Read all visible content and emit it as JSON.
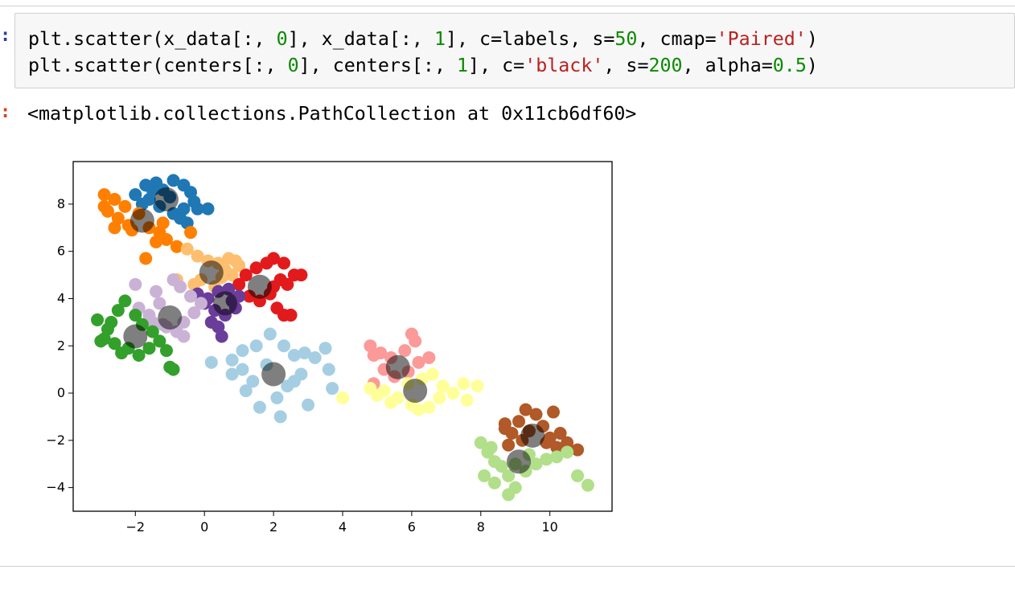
{
  "notebook": {
    "input_prompt": ":",
    "output_prompt": ":",
    "code_lines": [
      [
        {
          "t": "plt.scatter(x_data[:, ",
          "c": "plain"
        },
        {
          "t": "0",
          "c": "num"
        },
        {
          "t": "], x_data[:, ",
          "c": "plain"
        },
        {
          "t": "1",
          "c": "num"
        },
        {
          "t": "], c=labels, s=",
          "c": "plain"
        },
        {
          "t": "50",
          "c": "num"
        },
        {
          "t": ", cmap=",
          "c": "plain"
        },
        {
          "t": "'Paired'",
          "c": "str"
        },
        {
          "t": ")",
          "c": "plain"
        }
      ],
      [
        {
          "t": "plt.scatter(centers[:, ",
          "c": "plain"
        },
        {
          "t": "0",
          "c": "num"
        },
        {
          "t": "], centers[:, ",
          "c": "plain"
        },
        {
          "t": "1",
          "c": "num"
        },
        {
          "t": "], c=",
          "c": "plain"
        },
        {
          "t": "'black'",
          "c": "str"
        },
        {
          "t": ", s=",
          "c": "plain"
        },
        {
          "t": "200",
          "c": "num"
        },
        {
          "t": ", alpha=",
          "c": "plain"
        },
        {
          "t": "0.5",
          "c": "num"
        },
        {
          "t": ")",
          "c": "plain"
        }
      ]
    ],
    "output_text": "<matplotlib.collections.PathCollection at 0x11cb6df60>"
  },
  "chart_data": {
    "type": "scatter",
    "xlim": [
      -3.8,
      11.8
    ],
    "ylim": [
      -5.0,
      9.8
    ],
    "x_ticks": [
      -2,
      0,
      2,
      4,
      6,
      8,
      10
    ],
    "y_ticks": [
      -4,
      -2,
      0,
      2,
      4,
      6,
      8
    ],
    "x_tick_labels": [
      "−2",
      "0",
      "2",
      "4",
      "6",
      "8",
      "10"
    ],
    "y_tick_labels": [
      "−4",
      "−2",
      "0",
      "2",
      "4",
      "6",
      "8"
    ],
    "grid": false,
    "point_alpha": 1.0,
    "center_color": "#000000",
    "center_alpha": 0.5,
    "clusters": [
      {
        "color": "#1f78b4",
        "center": [
          -1.1,
          8.2
        ],
        "points": [
          [
            -2.0,
            8.4
          ],
          [
            -1.7,
            8.8
          ],
          [
            -1.4,
            8.9
          ],
          [
            -1.2,
            8.6
          ],
          [
            -0.9,
            9.0
          ],
          [
            -0.6,
            8.8
          ],
          [
            -0.4,
            8.5
          ],
          [
            -0.3,
            8.1
          ],
          [
            -0.6,
            7.8
          ],
          [
            -0.9,
            7.6
          ],
          [
            -1.3,
            7.9
          ],
          [
            -1.6,
            8.2
          ],
          [
            -0.2,
            7.8
          ],
          [
            0.1,
            7.8
          ],
          [
            -0.7,
            7.4
          ],
          [
            -1.0,
            8.3
          ],
          [
            -1.5,
            8.6
          ],
          [
            -0.5,
            7.2
          ],
          [
            -1.8,
            8.0
          ]
        ]
      },
      {
        "color": "#ff7f00",
        "center": [
          -1.8,
          7.3
        ],
        "points": [
          [
            -2.9,
            8.4
          ],
          [
            -2.6,
            8.2
          ],
          [
            -2.3,
            7.9
          ],
          [
            -2.8,
            7.7
          ],
          [
            -2.5,
            7.4
          ],
          [
            -2.2,
            7.1
          ],
          [
            -1.9,
            7.6
          ],
          [
            -1.6,
            7.0
          ],
          [
            -1.3,
            6.8
          ],
          [
            -1.1,
            6.5
          ],
          [
            -1.4,
            6.4
          ],
          [
            -1.7,
            5.7
          ],
          [
            -2.6,
            7.0
          ],
          [
            -2.1,
            6.9
          ],
          [
            -0.8,
            6.2
          ],
          [
            -0.4,
            6.8
          ],
          [
            -2.9,
            7.9
          ],
          [
            -1.2,
            7.2
          ]
        ]
      },
      {
        "color": "#fdbf6f",
        "center": [
          0.2,
          5.1
        ],
        "points": [
          [
            -0.5,
            6.1
          ],
          [
            -0.2,
            5.8
          ],
          [
            0.1,
            5.6
          ],
          [
            0.4,
            5.5
          ],
          [
            0.7,
            5.7
          ],
          [
            1.0,
            5.4
          ],
          [
            0.8,
            5.0
          ],
          [
            0.5,
            4.9
          ],
          [
            -0.1,
            4.8
          ],
          [
            -0.3,
            4.6
          ],
          [
            0.3,
            4.5
          ],
          [
            0.9,
            5.6
          ],
          [
            -0.8,
            4.8
          ],
          [
            0.6,
            5.2
          ]
        ]
      },
      {
        "color": "#e31a1c",
        "center": [
          1.6,
          4.5
        ],
        "points": [
          [
            1.2,
            5.0
          ],
          [
            1.5,
            5.3
          ],
          [
            1.8,
            5.5
          ],
          [
            2.0,
            5.7
          ],
          [
            2.3,
            5.5
          ],
          [
            2.6,
            5.0
          ],
          [
            2.2,
            4.8
          ],
          [
            1.9,
            4.2
          ],
          [
            1.6,
            3.9
          ],
          [
            1.3,
            4.1
          ],
          [
            2.0,
            4.5
          ],
          [
            2.4,
            4.6
          ],
          [
            2.5,
            3.3
          ],
          [
            2.1,
            3.6
          ],
          [
            1.0,
            4.6
          ],
          [
            2.8,
            5.0
          ],
          [
            2.3,
            3.3
          ]
        ]
      },
      {
        "color": "#6a3d9a",
        "center": [
          0.6,
          3.8
        ],
        "points": [
          [
            -0.2,
            4.2
          ],
          [
            0.1,
            4.0
          ],
          [
            0.4,
            4.3
          ],
          [
            0.7,
            4.4
          ],
          [
            1.0,
            4.1
          ],
          [
            0.9,
            3.6
          ],
          [
            0.6,
            3.3
          ],
          [
            0.3,
            3.5
          ],
          [
            0.2,
            3.0
          ],
          [
            0.5,
            2.4
          ],
          [
            0.0,
            3.8
          ],
          [
            0.8,
            3.9
          ],
          [
            0.4,
            2.8
          ]
        ]
      },
      {
        "color": "#cab2d6",
        "center": [
          -1.0,
          3.2
        ],
        "points": [
          [
            -2.0,
            4.6
          ],
          [
            -1.4,
            4.3
          ],
          [
            -0.7,
            4.5
          ],
          [
            -0.4,
            4.1
          ],
          [
            -0.1,
            3.8
          ],
          [
            -0.3,
            3.4
          ],
          [
            -0.6,
            3.0
          ],
          [
            -0.8,
            2.6
          ],
          [
            -1.2,
            2.9
          ],
          [
            -1.6,
            3.3
          ],
          [
            -1.9,
            3.6
          ],
          [
            -1.3,
            3.8
          ],
          [
            -0.6,
            2.4
          ],
          [
            -0.9,
            4.8
          ],
          [
            -1.5,
            3.0
          ],
          [
            -1.1,
            2.8
          ]
        ]
      },
      {
        "color": "#33a02c",
        "center": [
          -2.0,
          2.4
        ],
        "points": [
          [
            -3.1,
            3.1
          ],
          [
            -2.8,
            2.7
          ],
          [
            -2.5,
            3.5
          ],
          [
            -2.3,
            3.9
          ],
          [
            -2.0,
            3.3
          ],
          [
            -1.8,
            2.9
          ],
          [
            -2.6,
            2.1
          ],
          [
            -2.9,
            2.3
          ],
          [
            -2.2,
            1.9
          ],
          [
            -1.9,
            1.6
          ],
          [
            -1.6,
            1.9
          ],
          [
            -1.3,
            2.2
          ],
          [
            -1.1,
            1.8
          ],
          [
            -0.9,
            1.0
          ],
          [
            -1.0,
            1.1
          ],
          [
            -2.4,
            1.7
          ],
          [
            -1.5,
            2.6
          ],
          [
            -2.7,
            3.0
          ],
          [
            -3.0,
            2.2
          ]
        ]
      },
      {
        "color": "#a6cee3",
        "center": [
          2.0,
          0.8
        ],
        "points": [
          [
            0.2,
            1.3
          ],
          [
            0.8,
            1.4
          ],
          [
            1.1,
            1.8
          ],
          [
            1.5,
            2.0
          ],
          [
            1.9,
            2.5
          ],
          [
            2.3,
            2.0
          ],
          [
            2.6,
            1.6
          ],
          [
            2.9,
            1.7
          ],
          [
            3.2,
            1.5
          ],
          [
            3.5,
            1.9
          ],
          [
            3.6,
            1.0
          ],
          [
            2.8,
            0.8
          ],
          [
            2.4,
            0.3
          ],
          [
            2.1,
            -0.2
          ],
          [
            1.6,
            -0.6
          ],
          [
            1.2,
            0.1
          ],
          [
            0.8,
            0.8
          ],
          [
            1.4,
            0.5
          ],
          [
            2.2,
            -1.0
          ],
          [
            3.0,
            -0.5
          ],
          [
            3.7,
            0.2
          ],
          [
            1.8,
            1.2
          ],
          [
            1.1,
            1.0
          ],
          [
            2.6,
            0.5
          ]
        ]
      },
      {
        "color": "#fb9a99",
        "center": [
          5.6,
          1.1
        ],
        "points": [
          [
            4.8,
            2.0
          ],
          [
            5.1,
            1.7
          ],
          [
            5.4,
            1.5
          ],
          [
            5.8,
            1.8
          ],
          [
            6.1,
            2.2
          ],
          [
            6.2,
            1.3
          ],
          [
            6.5,
            1.5
          ],
          [
            5.9,
            0.9
          ],
          [
            5.2,
            1.0
          ],
          [
            4.9,
            0.4
          ],
          [
            5.5,
            0.7
          ],
          [
            6.0,
            2.5
          ],
          [
            4.9,
            1.6
          ]
        ]
      },
      {
        "color": "#ffff99",
        "center": [
          6.1,
          0.1
        ],
        "points": [
          [
            4.0,
            -0.2
          ],
          [
            4.8,
            0.2
          ],
          [
            5.2,
            0.1
          ],
          [
            5.6,
            -0.2
          ],
          [
            5.9,
            0.4
          ],
          [
            6.3,
            0.6
          ],
          [
            6.6,
            0.8
          ],
          [
            6.9,
            0.3
          ],
          [
            7.2,
            0.0
          ],
          [
            7.5,
            0.4
          ],
          [
            7.6,
            -0.3
          ],
          [
            6.5,
            -0.6
          ],
          [
            6.0,
            -0.5
          ],
          [
            5.4,
            -0.4
          ],
          [
            6.8,
            -0.2
          ],
          [
            5.0,
            -0.1
          ],
          [
            7.9,
            0.3
          ],
          [
            6.2,
            -0.7
          ]
        ]
      },
      {
        "color": "#b15928",
        "center": [
          9.5,
          -1.8
        ],
        "points": [
          [
            8.7,
            -1.3
          ],
          [
            8.9,
            -1.7
          ],
          [
            9.1,
            -1.2
          ],
          [
            9.3,
            -0.7
          ],
          [
            9.6,
            -0.9
          ],
          [
            9.8,
            -1.4
          ],
          [
            10.1,
            -0.8
          ],
          [
            10.3,
            -1.7
          ],
          [
            10.5,
            -2.1
          ],
          [
            10.8,
            -2.4
          ],
          [
            10.2,
            -2.3
          ],
          [
            9.9,
            -2.1
          ],
          [
            9.2,
            -2.0
          ],
          [
            8.7,
            -1.5
          ],
          [
            8.8,
            -2.2
          ],
          [
            9.4,
            -1.6
          ],
          [
            10.0,
            -1.9
          ]
        ]
      },
      {
        "color": "#b2df8a",
        "center": [
          9.1,
          -2.9
        ],
        "points": [
          [
            8.0,
            -2.1
          ],
          [
            8.2,
            -2.5
          ],
          [
            8.4,
            -2.9
          ],
          [
            8.6,
            -3.1
          ],
          [
            8.1,
            -3.5
          ],
          [
            8.4,
            -3.8
          ],
          [
            8.8,
            -3.5
          ],
          [
            9.0,
            -3.0
          ],
          [
            9.3,
            -3.3
          ],
          [
            9.6,
            -3.0
          ],
          [
            9.9,
            -2.8
          ],
          [
            10.2,
            -2.7
          ],
          [
            10.5,
            -2.5
          ],
          [
            9.4,
            -2.6
          ],
          [
            8.8,
            -4.3
          ],
          [
            9.0,
            -4.0
          ],
          [
            10.8,
            -3.5
          ],
          [
            11.1,
            -3.9
          ],
          [
            8.3,
            -2.3
          ]
        ]
      }
    ]
  }
}
